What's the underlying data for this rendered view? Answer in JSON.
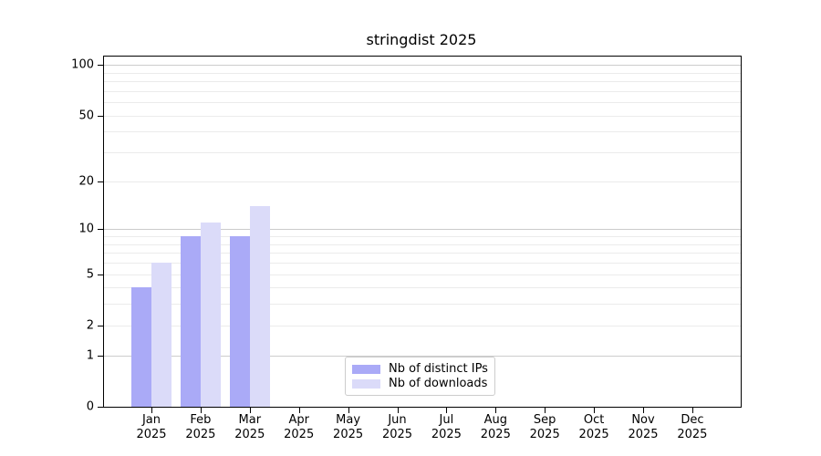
{
  "chart_data": {
    "type": "bar",
    "title": "stringdist 2025",
    "categories": [
      "Jan",
      "Feb",
      "Mar",
      "Apr",
      "May",
      "Jun",
      "Jul",
      "Aug",
      "Sep",
      "Oct",
      "Nov",
      "Dec"
    ],
    "year_label": "2025",
    "series": [
      {
        "name": "Nb of distinct IPs",
        "color": "#aaaaf7",
        "values": [
          4,
          9,
          9,
          0,
          0,
          0,
          0,
          0,
          0,
          0,
          0,
          0
        ]
      },
      {
        "name": "Nb of downloads",
        "color": "#dbdbf9",
        "values": [
          6,
          11,
          14,
          0,
          0,
          0,
          0,
          0,
          0,
          0,
          0,
          0
        ]
      }
    ],
    "yaxis": {
      "scale": "log1p",
      "ticks": [
        {
          "label": "0",
          "value": 0
        },
        {
          "label": "1",
          "value": 1
        },
        {
          "label": "2",
          "value": 2
        },
        {
          "label": "5",
          "value": 5
        },
        {
          "label": "10",
          "value": 10
        },
        {
          "label": "20",
          "value": 20
        },
        {
          "label": "50",
          "value": 50
        },
        {
          "label": "100",
          "value": 100
        }
      ],
      "major_gridlines": [
        1,
        10,
        100
      ],
      "minor_gridlines": [
        2,
        3,
        4,
        5,
        6,
        7,
        8,
        9,
        20,
        30,
        40,
        50,
        60,
        70,
        80,
        90
      ],
      "range_top_value": 112
    },
    "legend": {
      "position": "bottom-center"
    },
    "colors": {
      "major_grid": "#cccccc",
      "minor_grid": "#ebebeb",
      "spine": "#000000"
    },
    "grid": true
  }
}
